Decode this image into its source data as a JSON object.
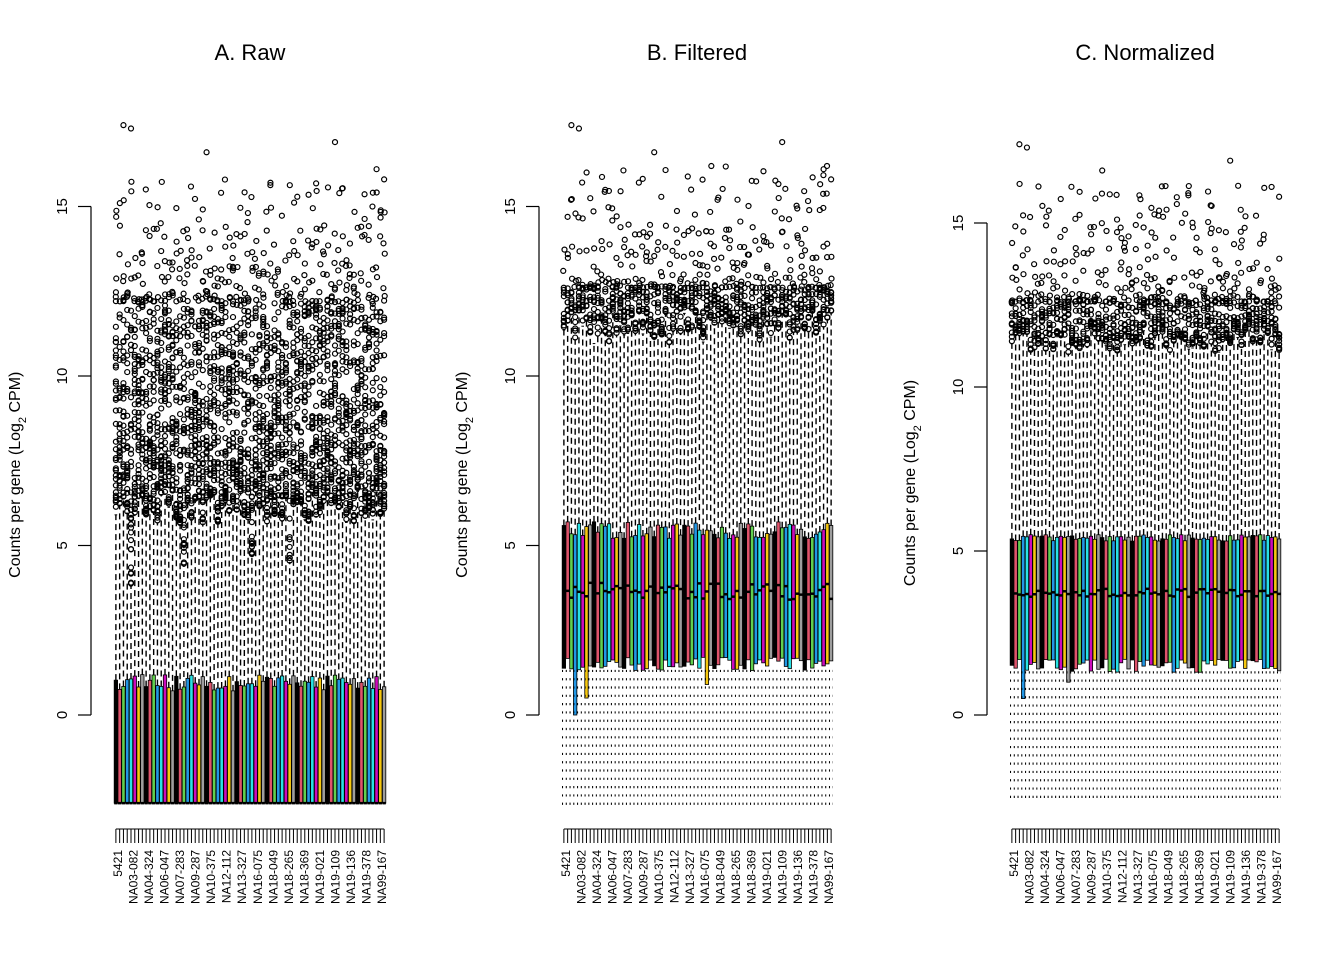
{
  "chart_data": [
    {
      "type": "boxplot",
      "title": "A. Raw",
      "ylabel_main": "Counts per gene (Log",
      "ylabel_sub": "2",
      "ylabel_tail": " CPM)",
      "yticks": [
        0,
        5,
        10,
        15
      ],
      "ylim": [
        -2.6,
        17.5
      ],
      "visible_category_labels": [
        "5421",
        "NA03-082",
        "NA04-324",
        "NA06-047",
        "NA07-283",
        "NA09-287",
        "NA10-375",
        "NA12-112",
        "NA13-327",
        "NA16-075",
        "NA18-049",
        "NA18-265",
        "NA18-369",
        "NA19-021",
        "NA19-109",
        "NA19-136",
        "NA19-378",
        "NA99-167"
      ],
      "n_samples": 72,
      "summary": {
        "whisker_low": -2.6,
        "q1": -2.6,
        "median": -2.6,
        "q3_range": [
          0.7,
          1.2
        ],
        "whisker_high_range": [
          3.8,
          6.7
        ],
        "outliers_dense_to": 12.2,
        "outliers_max": 17.4
      }
    },
    {
      "type": "boxplot",
      "title": "B. Filtered",
      "ylabel_main": "Counts per gene (Log",
      "ylabel_sub": "2",
      "ylabel_tail": " CPM)",
      "yticks": [
        0,
        5,
        10,
        15
      ],
      "ylim": [
        -2.6,
        17.5
      ],
      "visible_category_labels": [
        "5421",
        "NA03-082",
        "NA04-324",
        "NA06-047",
        "NA07-283",
        "NA09-287",
        "NA10-375",
        "NA12-112",
        "NA13-327",
        "NA16-075",
        "NA18-049",
        "NA18-265",
        "NA18-369",
        "NA19-021",
        "NA19-109",
        "NA19-136",
        "NA19-378",
        "NA99-167"
      ],
      "n_samples": 72,
      "summary": {
        "whisker_low": -2.6,
        "q1_range": [
          0,
          1.7
        ],
        "median_range": [
          3.3,
          3.9
        ],
        "q3_range": [
          5.2,
          5.7
        ],
        "whisker_high_range": [
          10.9,
          12.0
        ],
        "outliers_max": 17.4
      }
    },
    {
      "type": "boxplot",
      "title": "C. Normalized",
      "ylabel_main": "Counts per gene (Log",
      "ylabel_sub": "2",
      "ylabel_tail": " CPM)",
      "yticks": [
        0,
        5,
        10,
        15
      ],
      "ylim": [
        -2.6,
        17.5
      ],
      "visible_category_labels": [
        "5421",
        "NA03-082",
        "NA04-324",
        "NA06-047",
        "NA07-283",
        "NA09-287",
        "NA10-375",
        "NA12-112",
        "NA13-327",
        "NA16-075",
        "NA18-049",
        "NA18-265",
        "NA18-369",
        "NA19-021",
        "NA19-109",
        "NA19-136",
        "NA19-378",
        "NA99-167"
      ],
      "n_samples": 72,
      "summary": {
        "whisker_low": -2.6,
        "q1_range": [
          0.5,
          1.7
        ],
        "median_range": [
          3.5,
          3.9
        ],
        "q3_range": [
          5.3,
          5.5
        ],
        "whisker_high_range": [
          11.0,
          11.8
        ],
        "outliers_max": 17.4
      }
    }
  ],
  "box_colors": [
    "#000000",
    "#DF536B",
    "#61D04F",
    "#2297E6",
    "#28E2E5",
    "#CD0BBC",
    "#F5C710",
    "#9E9E9E"
  ]
}
